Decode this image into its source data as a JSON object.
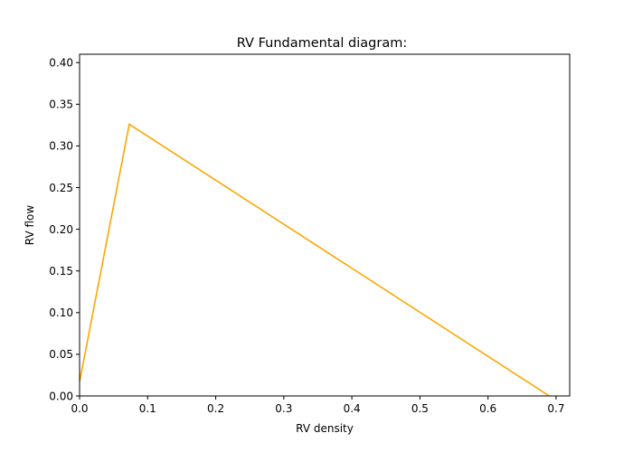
{
  "chart_data": {
    "type": "line",
    "title": "RV Fundamental diagram:",
    "xlabel": "RV density",
    "ylabel": "RV flow",
    "xlim": [
      0,
      0.72
    ],
    "ylim": [
      0,
      0.41
    ],
    "xticks": [
      "0.0",
      "0.1",
      "0.2",
      "0.3",
      "0.4",
      "0.5",
      "0.6",
      "0.7"
    ],
    "yticks": [
      "0.00",
      "0.05",
      "0.10",
      "0.15",
      "0.20",
      "0.25",
      "0.30",
      "0.35",
      "0.40"
    ],
    "grid": false,
    "series": [
      {
        "color": "#ffa500",
        "x": [
          0.0,
          0.073,
          0.69
        ],
        "y": [
          0.017,
          0.326,
          0.0
        ]
      }
    ]
  }
}
